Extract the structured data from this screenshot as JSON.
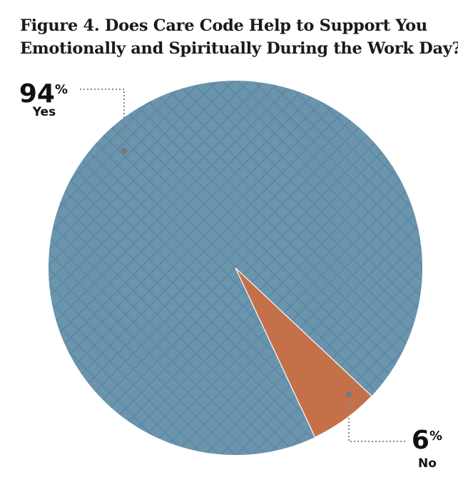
{
  "chart_data": {
    "type": "pie",
    "title_lines": [
      "Figure 4. Does Care Code Help to Support You",
      "Emotionally and Spiritually During the Work Day?"
    ],
    "categories": [
      "Yes",
      "No"
    ],
    "values": [
      94,
      6
    ],
    "value_labels": [
      "94",
      "6"
    ],
    "percent_sign": "%",
    "colors": [
      "#6b94ad",
      "#c4714a"
    ],
    "hatch_color": "#5a88a5",
    "leader_color": "#888888"
  }
}
